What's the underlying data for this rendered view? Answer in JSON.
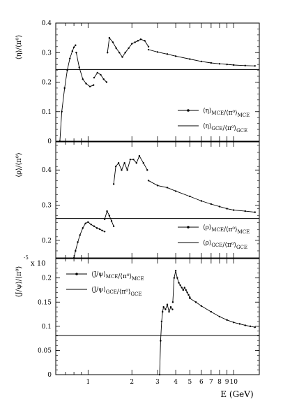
{
  "figure": {
    "x_axis": {
      "label": "E (GeV)",
      "ticks": [
        1,
        2,
        3,
        4,
        5,
        6,
        7,
        8,
        9,
        10
      ],
      "tick_labels": [
        "1",
        "2",
        "3",
        "4",
        "5",
        "6",
        "7",
        "8",
        "9",
        "10"
      ],
      "scale": "log",
      "range": [
        0.6,
        15
      ]
    }
  },
  "chart_data": [
    {
      "type": "line",
      "title": "",
      "ylabel": "⟨η⟩/⟨π⁰⟩",
      "ylim": [
        0,
        0.4
      ],
      "yticks": [
        0,
        0.1,
        0.2,
        0.3,
        0.4
      ],
      "ytick_labels": [
        "0",
        "0.1",
        "0.2",
        "0.3",
        "0.4"
      ],
      "legend_position": "lower-right",
      "series": [
        {
          "name": "⟨η⟩MCE/⟨π⁰⟩MCE",
          "legend_main": "⟨η⟩",
          "legend_sub1": "MCE",
          "legend_mid": "/⟨π⁰⟩",
          "legend_sub2": "MCE",
          "style": "markers",
          "segments": [
            {
              "x": [
                0.64,
                0.66,
                0.69,
                0.72,
                0.75,
                0.78,
                0.8,
                0.82
              ],
              "y": [
                0.0,
                0.1,
                0.18,
                0.24,
                0.28,
                0.305,
                0.318,
                0.325
              ]
            },
            {
              "x": [
                0.83,
                0.87,
                0.92,
                0.97,
                1.03,
                1.09
              ],
              "y": [
                0.3,
                0.25,
                0.21,
                0.195,
                0.185,
                0.19
              ]
            },
            {
              "x": [
                1.1,
                1.16,
                1.22,
                1.28,
                1.34
              ],
              "y": [
                0.215,
                0.232,
                0.225,
                0.21,
                0.2
              ]
            },
            {
              "x": [
                1.36,
                1.4,
                1.48,
                1.56,
                1.64,
                1.72,
                1.8,
                1.9,
                2.0,
                2.1,
                2.2,
                2.3,
                2.45,
                2.6
              ],
              "y": [
                0.3,
                0.35,
                0.335,
                0.315,
                0.3,
                0.285,
                0.3,
                0.315,
                0.33,
                0.335,
                0.34,
                0.345,
                0.34,
                0.32
              ]
            },
            {
              "x": [
                2.6,
                3.0,
                3.5,
                4.0,
                5.0,
                6.0,
                7.0,
                8.0,
                9.0,
                10.0,
                12.0,
                14.0
              ],
              "y": [
                0.31,
                0.302,
                0.295,
                0.288,
                0.278,
                0.27,
                0.265,
                0.262,
                0.26,
                0.258,
                0.256,
                0.255
              ]
            }
          ]
        },
        {
          "name": "⟨η⟩GCE/⟨π⁰⟩GCE",
          "legend_main": "⟨η⟩",
          "legend_sub1": "GCE",
          "legend_mid": "/⟨π⁰⟩",
          "legend_sub2": "GCE",
          "style": "solid",
          "x": [
            0.6,
            15
          ],
          "y": [
            0.243,
            0.243
          ]
        }
      ]
    },
    {
      "type": "line",
      "title": "",
      "ylabel": "⟨ρ⟩/⟨π⁰⟩",
      "ylim": [
        0.15,
        0.48
      ],
      "yticks": [
        0.2,
        0.3,
        0.4
      ],
      "ytick_labels": [
        "0.2",
        "0.3",
        "0.4"
      ],
      "legend_position": "lower-right",
      "series": [
        {
          "name": "⟨ρ⟩MCE/⟨π⁰⟩MCE",
          "legend_main": "⟨ρ⟩",
          "legend_sub1": "MCE",
          "legend_mid": "/⟨π⁰⟩",
          "legend_sub2": "MCE",
          "style": "markers",
          "segments": [
            {
              "x": [
                0.8,
                0.82,
                0.85,
                0.88,
                0.92,
                0.96,
                1.0,
                1.05,
                1.1,
                1.15,
                1.2,
                1.25,
                1.3
              ],
              "y": [
                0.15,
                0.17,
                0.195,
                0.215,
                0.235,
                0.248,
                0.252,
                0.245,
                0.24,
                0.235,
                0.232,
                0.228,
                0.225
              ]
            },
            {
              "x": [
                1.3,
                1.35,
                1.4,
                1.45,
                1.5
              ],
              "y": [
                0.26,
                0.283,
                0.27,
                0.255,
                0.24
              ]
            },
            {
              "x": [
                1.5,
                1.55,
                1.62,
                1.7,
                1.78,
                1.86,
                1.95,
                2.05,
                2.15,
                2.25,
                2.4,
                2.55
              ],
              "y": [
                0.36,
                0.41,
                0.42,
                0.4,
                0.42,
                0.4,
                0.43,
                0.43,
                0.42,
                0.44,
                0.42,
                0.4
              ]
            },
            {
              "x": [
                2.6,
                3.0,
                3.5,
                4.0,
                5.0,
                6.0,
                7.0,
                8.0,
                9.0,
                10.0,
                12.0,
                14.0
              ],
              "y": [
                0.37,
                0.356,
                0.35,
                0.34,
                0.325,
                0.312,
                0.303,
                0.296,
                0.29,
                0.286,
                0.283,
                0.28
              ]
            }
          ]
        },
        {
          "name": "⟨ρ⟩GCE/⟨π⁰⟩GCE",
          "legend_main": "⟨ρ⟩",
          "legend_sub1": "GCE",
          "legend_mid": "/⟨π⁰⟩",
          "legend_sub2": "GCE",
          "style": "solid",
          "x": [
            0.6,
            15
          ],
          "y": [
            0.262,
            0.262
          ]
        }
      ]
    },
    {
      "type": "line",
      "title": "",
      "ylabel": "⟨J/ψ⟩/⟨π⁰⟩",
      "ylabel_multiplier": "x 10",
      "ylabel_multiplier_exp": "-5",
      "ylim": [
        0,
        0.24
      ],
      "yticks": [
        0,
        0.05,
        0.1,
        0.15,
        0.2
      ],
      "ytick_labels": [
        "0",
        "0.05",
        "0.1",
        "0.15",
        "0.2"
      ],
      "legend_position": "upper-left",
      "series": [
        {
          "name": "⟨J/ψ⟩MCE/⟨π⁰⟩MCE",
          "legend_main": "⟨J/ψ⟩",
          "legend_sub1": "MCE",
          "legend_mid": "/⟨π⁰⟩",
          "legend_sub2": "MCE",
          "style": "markers",
          "segments": [
            {
              "x": [
                3.1,
                3.15,
                3.2,
                3.25,
                3.3,
                3.4,
                3.5,
                3.6,
                3.7,
                3.8
              ],
              "y": [
                0.0,
                0.07,
                0.11,
                0.13,
                0.14,
                0.135,
                0.145,
                0.13,
                0.14,
                0.135
              ]
            },
            {
              "x": [
                3.82,
                3.9,
                4.0,
                4.1,
                4.2,
                4.3,
                4.4,
                4.5,
                4.6,
                4.7,
                4.8,
                4.9,
                5.0
              ],
              "y": [
                0.15,
                0.2,
                0.215,
                0.2,
                0.19,
                0.185,
                0.18,
                0.175,
                0.18,
                0.175,
                0.17,
                0.165,
                0.16
              ]
            },
            {
              "x": [
                5.0,
                5.5,
                6.0,
                7.0,
                8.0,
                9.0,
                10.0,
                11.0,
                12.0,
                13.0,
                14.0
              ],
              "y": [
                0.158,
                0.15,
                0.142,
                0.13,
                0.12,
                0.113,
                0.108,
                0.105,
                0.102,
                0.1,
                0.098
              ]
            }
          ]
        },
        {
          "name": "⟨J/ψ⟩GCE/⟨π⁰⟩GCE",
          "legend_main": "⟨J/ψ⟩",
          "legend_sub1": "GCE",
          "legend_mid": "/⟨π⁰⟩",
          "legend_sub2": "GCE",
          "style": "solid",
          "x": [
            0.6,
            15
          ],
          "y": [
            0.081,
            0.081
          ]
        }
      ]
    }
  ]
}
